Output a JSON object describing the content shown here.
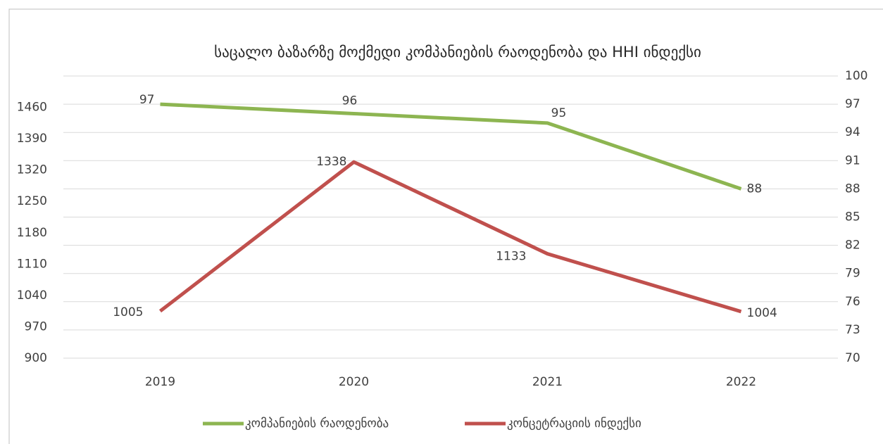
{
  "chart_data": {
    "type": "line",
    "title": "საცალო ბაზარზე მოქმედი კომპანიების რაოდენობა და HHI ინდექსი",
    "categories": [
      "2019",
      "2020",
      "2021",
      "2022"
    ],
    "series": [
      {
        "name": "კომპანიების რაოდენობა",
        "color": "#8db551",
        "axis": "y2",
        "values": [
          97,
          96,
          95,
          88
        ]
      },
      {
        "name": "კონცეტრაციის ინდექსი",
        "color": "#c0504d",
        "values": [
          1005,
          1338,
          1133,
          1004
        ]
      }
    ],
    "ylim": [
      900,
      1530
    ],
    "yticks": [
      900,
      970,
      1040,
      1110,
      1180,
      1250,
      1320,
      1390,
      1460
    ],
    "y2lim": [
      70,
      100
    ],
    "y2ticks": [
      70,
      73,
      76,
      79,
      82,
      85,
      88,
      91,
      94,
      97,
      100
    ],
    "grid": true,
    "legend": "bottom"
  }
}
